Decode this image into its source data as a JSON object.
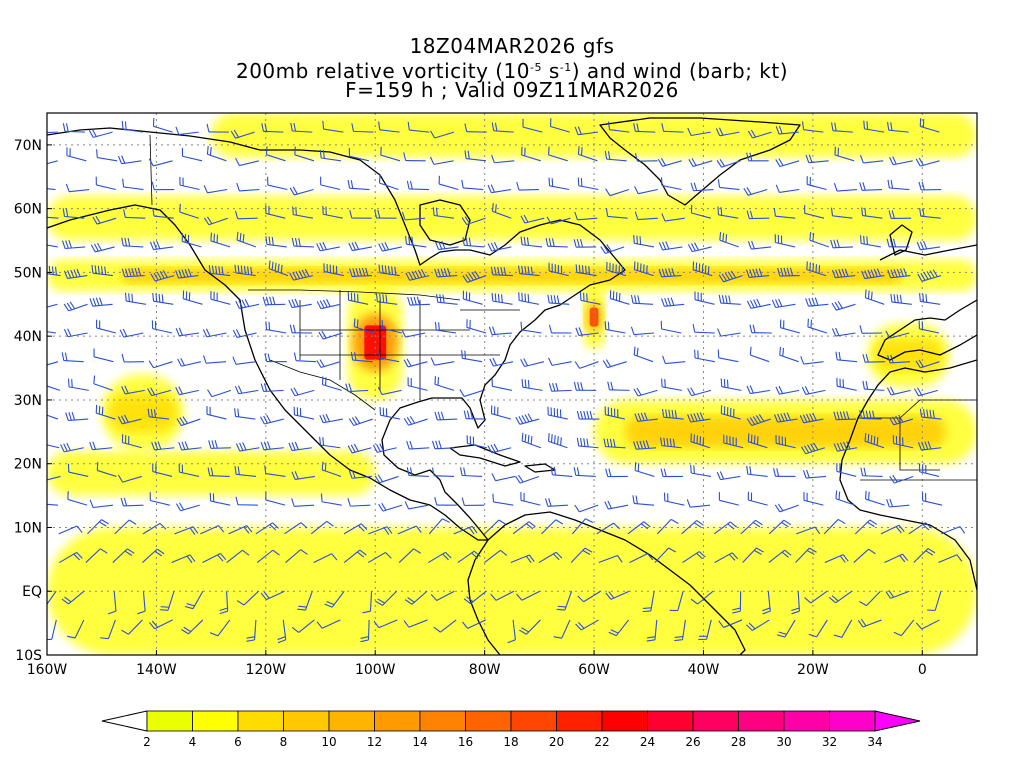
{
  "title": {
    "line1": "18Z04MAR2026 gfs",
    "line2_pre": "200mb relative vorticity (10",
    "line2_exp1": "-5",
    "line2_mid": " s",
    "line2_exp2": "-1",
    "line2_post": ") and wind (barb; kt)",
    "line3": "F=159 h ; Valid 09Z11MAR2026"
  },
  "map": {
    "projection": "cylindrical equidistant",
    "lon_range": [
      -160,
      10
    ],
    "lat_range": [
      -10,
      75
    ],
    "lat_ticks": [
      {
        "value": 70,
        "label": "70N"
      },
      {
        "value": 60,
        "label": "60N"
      },
      {
        "value": 50,
        "label": "50N"
      },
      {
        "value": 40,
        "label": "40N"
      },
      {
        "value": 30,
        "label": "30N"
      },
      {
        "value": 20,
        "label": "20N"
      },
      {
        "value": 10,
        "label": "10N"
      },
      {
        "value": 0,
        "label": "EQ"
      },
      {
        "value": -10,
        "label": "10S"
      }
    ],
    "lon_ticks": [
      {
        "value": -160,
        "label": "160W"
      },
      {
        "value": -140,
        "label": "140W"
      },
      {
        "value": -120,
        "label": "120W"
      },
      {
        "value": -100,
        "label": "100W"
      },
      {
        "value": -80,
        "label": "80W"
      },
      {
        "value": -60,
        "label": "60W"
      },
      {
        "value": -40,
        "label": "40W"
      },
      {
        "value": -20,
        "label": "20W"
      },
      {
        "value": 0,
        "label": "0"
      }
    ],
    "gridlines": "dotted",
    "barb_color": "#2a4fd8",
    "coast_color": "#000000",
    "vorticity_bands": [
      {
        "id": "subpolar-jet",
        "lon": [
          -160,
          10
        ],
        "lat": [
          47,
          52
        ],
        "level": 12
      },
      {
        "id": "northern-band",
        "lon": [
          -160,
          10
        ],
        "lat": [
          55,
          62
        ],
        "level": 6
      },
      {
        "id": "arctic-band",
        "lon": [
          -130,
          10
        ],
        "lat": [
          68,
          75
        ],
        "level": 4
      },
      {
        "id": "subtropical-jet",
        "lon": [
          -60,
          10
        ],
        "lat": [
          20,
          30
        ],
        "level": 12
      },
      {
        "id": "pacific-low",
        "lon": [
          -150,
          -135
        ],
        "lat": [
          22,
          34
        ],
        "level": 10
      },
      {
        "id": "pacific-subtropical",
        "lon": [
          -160,
          -100
        ],
        "lat": [
          15,
          22
        ],
        "level": 6
      },
      {
        "id": "plains-trough",
        "lon": [
          -105,
          -95
        ],
        "lat": [
          30,
          48
        ],
        "level": 22
      },
      {
        "id": "atlantic-trough",
        "lon": [
          -62,
          -58
        ],
        "lat": [
          38,
          48
        ],
        "level": 18
      },
      {
        "id": "iberia-low",
        "lon": [
          -10,
          5
        ],
        "lat": [
          32,
          42
        ],
        "level": 10
      },
      {
        "id": "tropical-noise",
        "lon": [
          -160,
          10
        ],
        "lat": [
          -10,
          10
        ],
        "level": 4
      }
    ]
  },
  "colorbar": {
    "colors": [
      "#eaff00",
      "#ffff00",
      "#ffdc00",
      "#ffc800",
      "#ffb400",
      "#ff9b00",
      "#ff8200",
      "#ff6400",
      "#ff4600",
      "#ff2000",
      "#ff0000",
      "#ff0030",
      "#ff0060",
      "#ff0080",
      "#ff00a6",
      "#ff00cc",
      "#ff00ff"
    ],
    "labels": [
      "2",
      "4",
      "6",
      "8",
      "10",
      "12",
      "14",
      "16",
      "18",
      "20",
      "22",
      "24",
      "26",
      "28",
      "30",
      "32",
      "34"
    ]
  }
}
